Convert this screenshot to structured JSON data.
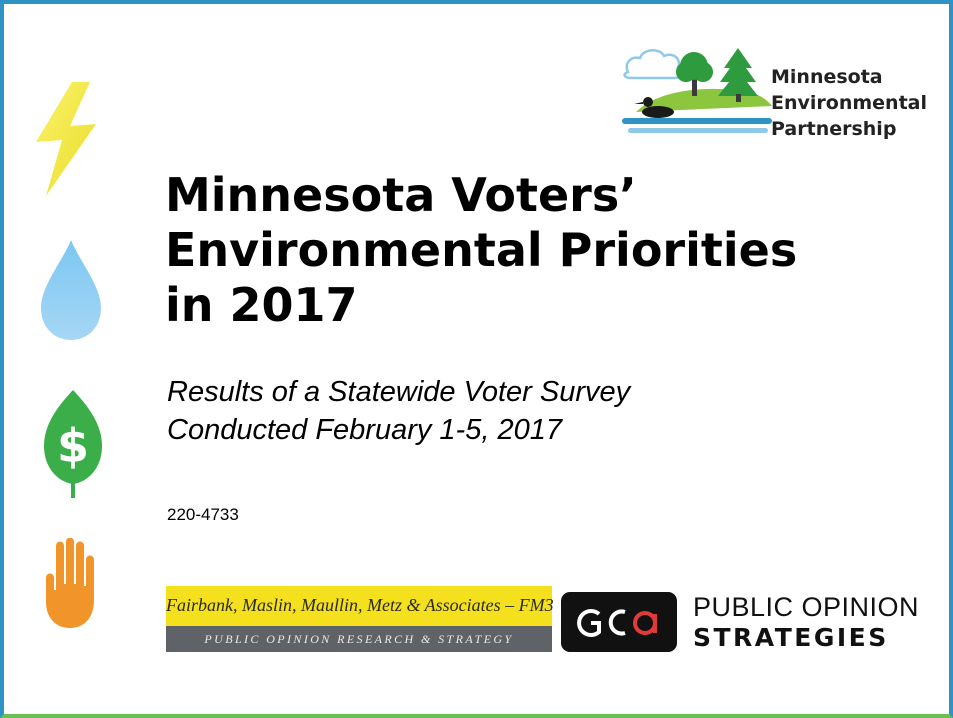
{
  "slide": {
    "title_lines": [
      "Minnesota Voters’",
      "Environmental Priorities",
      "in 2017"
    ],
    "subtitle_lines": [
      "Results of a Statewide Voter Survey",
      "Conducted February 1-5, 2017"
    ],
    "project_code": "220-4733"
  },
  "icons": {
    "energy": "lightning-bolt-icon",
    "water": "water-drop-icon",
    "economy": "dollar-leaf-icon",
    "stop": "raised-hand-icon"
  },
  "logos": {
    "mep": {
      "lines": [
        "Minnesota",
        "Environmental",
        "Partnership"
      ]
    },
    "fm3": {
      "name": "Fairbank, Maslin, Maullin, Metz & Associates – FM3",
      "tagline": "PUBLIC OPINION RESEARCH & STRATEGY"
    },
    "pos": {
      "badge": "GOa",
      "line1": "PUBLIC OPINION",
      "line2": "STRATEGIES"
    }
  },
  "colors": {
    "border_blue": "#2f93c6",
    "border_green": "#6cbf54",
    "fm3_yellow": "#f4e01c",
    "fm3_gray": "#5f6266"
  }
}
